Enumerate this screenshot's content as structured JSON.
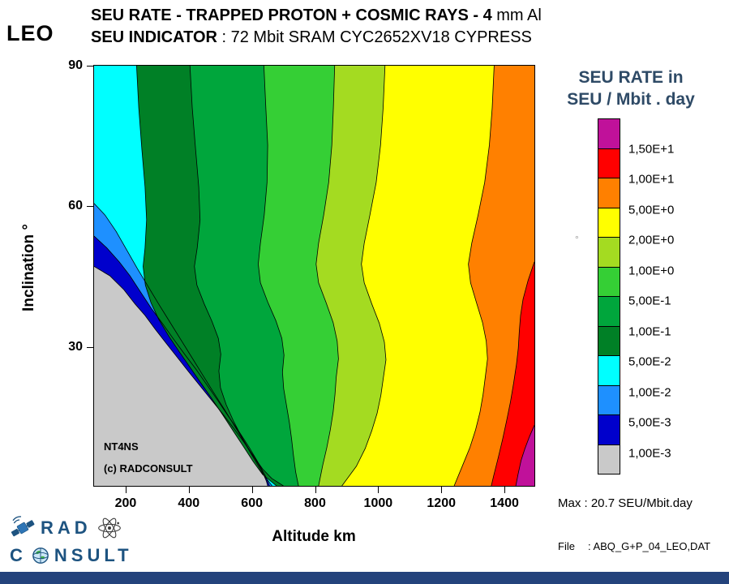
{
  "page": {
    "bg": "#FFFFFF",
    "bottom_bar_color": "#24437C"
  },
  "header": {
    "leo": "LEO",
    "line1_bold": "SEU RATE - TRAPPED PROTON + COSMIC RAYS  - 4",
    "line1_normal": " mm Al",
    "line2_bold": "SEU INDICATOR",
    "line2_normal": " : 72 Mbit SRAM CYC2652XV18 CYPRESS"
  },
  "axes": {
    "xlabel": "Altitude km",
    "ylabel": "Inclination °"
  },
  "plot_annotations": {
    "line1": "NT4NS",
    "line2": "(c) RADCONSULT"
  },
  "legend": {
    "title_line1": "SEU RATE in",
    "title_line2": "SEU / Mbit . day",
    "title_color": "#2E4A66",
    "labels": [
      "1,50E+1",
      "1,00E+1",
      "5,00E+0",
      "2,00E+0",
      "1,00E+0",
      "5,00E-1",
      "1,00E-1",
      "5,00E-2",
      "1,00E-2",
      "5,00E-3",
      "1,00E-3"
    ],
    "colors": [
      "#C0119A",
      "#FF0000",
      "#FF8000",
      "#FFFF00",
      "#A4DB21",
      "#35CF35",
      "#00A63C",
      "#008026",
      "#00FFFF",
      "#1E90FF",
      "#0000CC",
      "#C9C9C9"
    ]
  },
  "notes": {
    "max": "Max : 20.7 SEU/Mbit.day",
    "file_label": "File",
    "file_value": ": ABQ_G+P_04_LEO,DAT"
  },
  "logo": {
    "line1": "RAD",
    "line2_pre": "C",
    "line2_post": "NSULT",
    "color": "#1D5380"
  },
  "chart_data": {
    "type": "contour",
    "title": "SEU RATE - TRAPPED PROTON + COSMIC RAYS - 4 mm Al",
    "subtitle": "SEU INDICATOR : 72 Mbit SRAM CYC2652XV18 CYPRESS",
    "orbit": "LEO",
    "xlabel": "Altitude km",
    "ylabel": "Inclination °",
    "xlim": [
      100,
      1500
    ],
    "ylim": [
      0,
      90
    ],
    "xticks": [
      200,
      400,
      600,
      800,
      1000,
      1200,
      1400
    ],
    "yticks": [
      30,
      60,
      90
    ],
    "unit": "SEU / Mbit . day",
    "max_value": 20.7,
    "base_color": "#C9C9C9",
    "base_level_label": "< 1,00E-3",
    "bands": [
      {
        "min_level": "1,00E-3",
        "color": "#0000CC",
        "boundary": [
          [
            100,
            47
          ],
          [
            150,
            45
          ],
          [
            195,
            42
          ],
          [
            230,
            39
          ],
          [
            262,
            36.5
          ],
          [
            295,
            33.5
          ],
          [
            330,
            30.5
          ],
          [
            365,
            27.5
          ],
          [
            400,
            24.5
          ],
          [
            436,
            21.5
          ],
          [
            472,
            18.5
          ],
          [
            508,
            15.5
          ],
          [
            542,
            12.5
          ],
          [
            575,
            9.5
          ],
          [
            606,
            6.5
          ],
          [
            632,
            3.5
          ],
          [
            648,
            1
          ],
          [
            652,
            0
          ]
        ]
      },
      {
        "min_level": "5,00E-3",
        "color": "#1E90FF",
        "boundary": [
          [
            100,
            53.5
          ],
          [
            140,
            51
          ],
          [
            180,
            48
          ],
          [
            214,
            45
          ],
          [
            248,
            41.5
          ],
          [
            282,
            38
          ],
          [
            317,
            34.8
          ],
          [
            352,
            31.5
          ],
          [
            388,
            28.2
          ],
          [
            424,
            25
          ],
          [
            459,
            21.6
          ],
          [
            494,
            18.2
          ],
          [
            528,
            14.8
          ],
          [
            561,
            11.6
          ],
          [
            592,
            8.4
          ],
          [
            620,
            5.2
          ],
          [
            644,
            2.2
          ],
          [
            658,
            0
          ]
        ]
      },
      {
        "min_level": "1,00E-2",
        "color": "#00FFFF",
        "boundary": [
          [
            100,
            60.5
          ],
          [
            135,
            58
          ],
          [
            170,
            54.5
          ],
          [
            204,
            50.5
          ],
          [
            238,
            46.5
          ],
          [
            271,
            42.8
          ],
          [
            305,
            39
          ],
          [
            340,
            35.2
          ],
          [
            375,
            31.4
          ],
          [
            410,
            27.6
          ],
          [
            445,
            23.8
          ],
          [
            480,
            20
          ],
          [
            514,
            16.4
          ],
          [
            547,
            12.8
          ],
          [
            579,
            9.2
          ],
          [
            609,
            5.8
          ],
          [
            636,
            2.6
          ],
          [
            666,
            0
          ]
        ]
      },
      {
        "min_level": "5,00E-2",
        "color": "#008026",
        "boundary": [
          [
            235,
            90
          ],
          [
            242,
            81
          ],
          [
            252,
            72
          ],
          [
            262,
            64
          ],
          [
            267,
            57
          ],
          [
            262,
            51
          ],
          [
            256,
            47
          ],
          [
            263,
            43
          ],
          [
            281,
            39.2
          ],
          [
            306,
            35.6
          ],
          [
            338,
            32
          ],
          [
            372,
            28.6
          ],
          [
            407,
            25.2
          ],
          [
            442,
            21.8
          ],
          [
            477,
            18.4
          ],
          [
            511,
            15
          ],
          [
            544,
            11.6
          ],
          [
            576,
            8.3
          ],
          [
            606,
            5.2
          ],
          [
            636,
            2.4
          ],
          [
            680,
            0
          ]
        ]
      },
      {
        "min_level": "1,00E-1",
        "color": "#00A63C",
        "boundary": [
          [
            405,
            90
          ],
          [
            412,
            81
          ],
          [
            423,
            72
          ],
          [
            433,
            64
          ],
          [
            437,
            57
          ],
          [
            428,
            51
          ],
          [
            419,
            47
          ],
          [
            427,
            43
          ],
          [
            450,
            39
          ],
          [
            475,
            35.2
          ],
          [
            495,
            31.6
          ],
          [
            503,
            28.2
          ],
          [
            497,
            24.6
          ],
          [
            502,
            21
          ],
          [
            520,
            17.4
          ],
          [
            544,
            13.8
          ],
          [
            572,
            10.2
          ],
          [
            602,
            6.8
          ],
          [
            636,
            3.6
          ],
          [
            665,
            1.6
          ],
          [
            702,
            0
          ]
        ]
      },
      {
        "min_level": "5,00E-1",
        "color": "#35CF35",
        "boundary": [
          [
            640,
            90
          ],
          [
            646,
            81
          ],
          [
            652,
            73
          ],
          [
            650,
            65
          ],
          [
            641,
            58
          ],
          [
            629,
            52
          ],
          [
            622,
            47.5
          ],
          [
            629,
            43.5
          ],
          [
            652,
            39.4
          ],
          [
            678,
            35.4
          ],
          [
            697,
            31.6
          ],
          [
            704,
            28
          ],
          [
            699,
            24.4
          ],
          [
            703,
            20.8
          ],
          [
            712,
            17.2
          ],
          [
            721,
            13.6
          ],
          [
            728,
            10
          ],
          [
            734,
            6.5
          ],
          [
            741,
            3
          ],
          [
            750,
            0
          ]
        ]
      },
      {
        "min_level": "1,00E+0",
        "color": "#A4DB21",
        "boundary": [
          [
            865,
            90
          ],
          [
            861,
            81
          ],
          [
            856,
            73
          ],
          [
            846,
            65
          ],
          [
            830,
            58
          ],
          [
            814,
            52
          ],
          [
            806,
            47.5
          ],
          [
            814,
            43.5
          ],
          [
            838,
            39.2
          ],
          [
            860,
            35
          ],
          [
            873,
            31
          ],
          [
            877,
            27.2
          ],
          [
            870,
            23.4
          ],
          [
            866,
            19.6
          ],
          [
            860,
            15.8
          ],
          [
            851,
            12
          ],
          [
            840,
            8.2
          ],
          [
            827,
            4.4
          ],
          [
            814,
            0
          ]
        ]
      },
      {
        "min_level": "2,00E+0",
        "color": "#FFFF00",
        "boundary": [
          [
            1025,
            90
          ],
          [
            1019,
            81
          ],
          [
            1011,
            73
          ],
          [
            997,
            65
          ],
          [
            977,
            58
          ],
          [
            959,
            52
          ],
          [
            950,
            47.5
          ],
          [
            959,
            43.5
          ],
          [
            983,
            39
          ],
          [
            1007,
            34.8
          ],
          [
            1023,
            30.8
          ],
          [
            1028,
            27
          ],
          [
            1020,
            23.2
          ],
          [
            1012,
            19.4
          ],
          [
            1000,
            15.6
          ],
          [
            983,
            11.8
          ],
          [
            962,
            8
          ],
          [
            934,
            4.2
          ],
          [
            888,
            0
          ]
        ]
      },
      {
        "min_level": "5,00E+0",
        "color": "#FF8000",
        "boundary": [
          [
            1372,
            90
          ],
          [
            1366,
            81
          ],
          [
            1357,
            73
          ],
          [
            1342,
            65
          ],
          [
            1321,
            58
          ],
          [
            1301,
            52
          ],
          [
            1290,
            47.5
          ],
          [
            1297,
            43.5
          ],
          [
            1316,
            39.2
          ],
          [
            1335,
            35
          ],
          [
            1347,
            31
          ],
          [
            1351,
            27.2
          ],
          [
            1344,
            23.4
          ],
          [
            1337,
            19.6
          ],
          [
            1327,
            15.8
          ],
          [
            1313,
            12
          ],
          [
            1295,
            8.2
          ],
          [
            1272,
            4.4
          ],
          [
            1245,
            0
          ]
        ]
      },
      {
        "min_level": "1,00E+1",
        "color": "#FF0000",
        "boundary": [
          [
            1500,
            48
          ],
          [
            1480,
            44
          ],
          [
            1464,
            40
          ],
          [
            1456,
            36.5
          ],
          [
            1452,
            33
          ],
          [
            1449,
            29.5
          ],
          [
            1443,
            26
          ],
          [
            1434,
            22
          ],
          [
            1424,
            18
          ],
          [
            1412,
            14
          ],
          [
            1399,
            10
          ],
          [
            1385,
            6
          ],
          [
            1370,
            2
          ],
          [
            1363,
            0
          ]
        ]
      },
      {
        "min_level": "1,50E+1",
        "color": "#C0119A",
        "boundary": [
          [
            1500,
            13
          ],
          [
            1484,
            10.5
          ],
          [
            1470,
            8
          ],
          [
            1458,
            5.5
          ],
          [
            1448,
            2.5
          ],
          [
            1441,
            0
          ]
        ]
      }
    ]
  }
}
